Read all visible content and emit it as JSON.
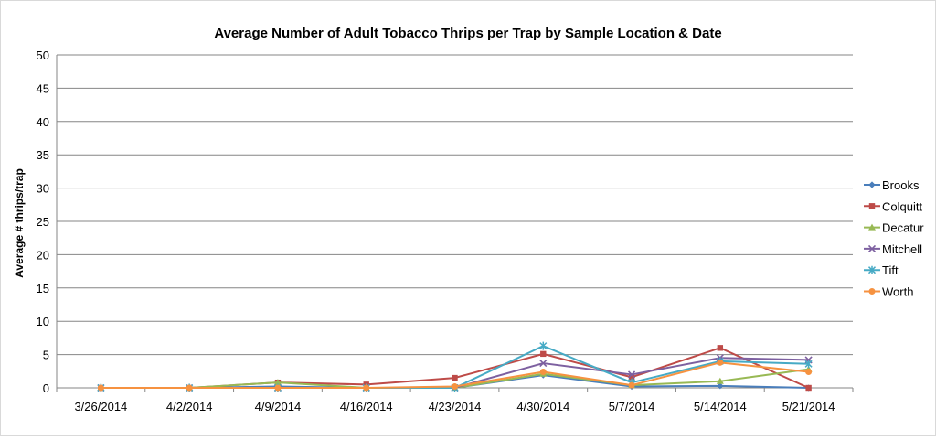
{
  "chart_data": {
    "type": "line",
    "title": "Average Number of Adult Tobacco Thrips per Trap by Sample Location & Date",
    "xlabel": "",
    "ylabel": "Average # thrips/trap",
    "categories": [
      "3/26/2014",
      "4/2/2014",
      "4/9/2014",
      "4/16/2014",
      "4/23/2014",
      "4/30/2014",
      "5/7/2014",
      "5/14/2014",
      "5/21/2014"
    ],
    "ylim": [
      0,
      50
    ],
    "yticks": [
      0,
      5,
      10,
      15,
      20,
      25,
      30,
      35,
      40,
      45,
      50
    ],
    "grid": true,
    "legend_position": "right",
    "series": [
      {
        "name": "Brooks",
        "color": "#4a7ebb",
        "marker": "diamond",
        "values": [
          0,
          0,
          0.2,
          0,
          0,
          1.9,
          0.2,
          0.3,
          0
        ]
      },
      {
        "name": "Colquitt",
        "color": "#be4b48",
        "marker": "square",
        "values": [
          0,
          0,
          0.8,
          0.5,
          1.5,
          5.1,
          1.6,
          6.0,
          0
        ]
      },
      {
        "name": "Decatur",
        "color": "#98b954",
        "marker": "triangle",
        "values": [
          0,
          0,
          0.8,
          0,
          0,
          2.1,
          0.4,
          1.0,
          2.8
        ]
      },
      {
        "name": "Mitchell",
        "color": "#7d60a0",
        "marker": "x",
        "values": [
          0,
          0,
          0,
          0,
          0,
          3.7,
          2.0,
          4.5,
          4.2
        ]
      },
      {
        "name": "Tift",
        "color": "#46aac5",
        "marker": "star",
        "values": [
          0,
          0,
          0,
          0,
          0,
          6.3,
          0.8,
          4.0,
          3.6
        ]
      },
      {
        "name": "Worth",
        "color": "#f69240",
        "marker": "circle",
        "values": [
          0,
          0,
          0,
          0,
          0.2,
          2.4,
          0.4,
          3.8,
          2.4
        ]
      }
    ]
  }
}
